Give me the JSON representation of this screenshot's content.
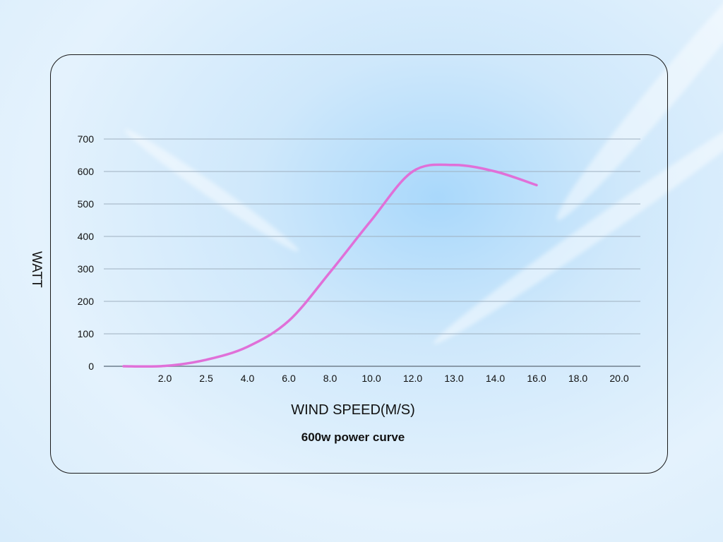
{
  "chart_data": {
    "type": "line",
    "title": "600w  power curve",
    "xlabel": "WIND SPEED(M/S)",
    "ylabel": "WATT",
    "categories": [
      "",
      "2.0",
      "2.5",
      "4.0",
      "6.0",
      "8.0",
      "10.0",
      "12.0",
      "13.0",
      "14.0",
      "16.0",
      "18.0",
      "20.0"
    ],
    "series": [
      {
        "name": "power",
        "color": "#e070d8",
        "values": [
          0,
          1,
          20,
          60,
          140,
          290,
          450,
          600,
          620,
          600,
          558,
          null,
          null
        ]
      }
    ],
    "ylim": [
      0,
      700
    ],
    "yticks": [
      0,
      100,
      200,
      300,
      400,
      500,
      600,
      700
    ],
    "grid": true
  }
}
